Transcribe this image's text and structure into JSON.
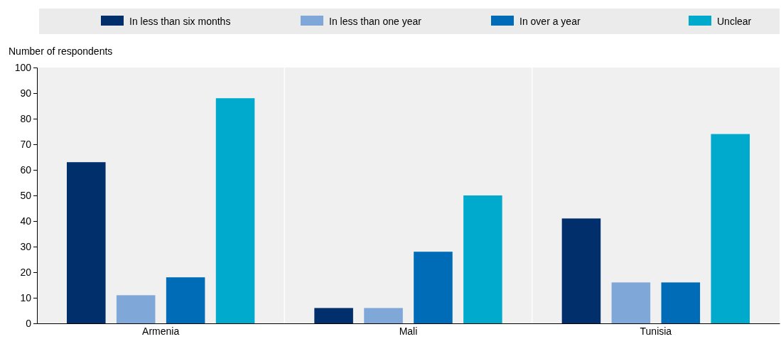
{
  "chart_data": {
    "type": "bar",
    "ylabel": "Number of respondents",
    "categories": [
      "Armenia",
      "Mali",
      "Tunisia"
    ],
    "series": [
      {
        "name": "In less than six months",
        "color": "#002f6c",
        "values": [
          63,
          6,
          41
        ]
      },
      {
        "name": "In less than one year",
        "color": "#7fa8d9",
        "values": [
          11,
          6,
          16
        ]
      },
      {
        "name": "In over a year",
        "color": "#006bb6",
        "values": [
          18,
          28,
          16
        ]
      },
      {
        "name": "Unclear",
        "color": "#00aacc",
        "values": [
          88,
          50,
          74
        ]
      }
    ],
    "ylim": [
      0,
      100
    ],
    "yticks": [
      0,
      10,
      20,
      30,
      40,
      50,
      60,
      70,
      80,
      90,
      100
    ],
    "grid": "x",
    "legend": "top"
  }
}
